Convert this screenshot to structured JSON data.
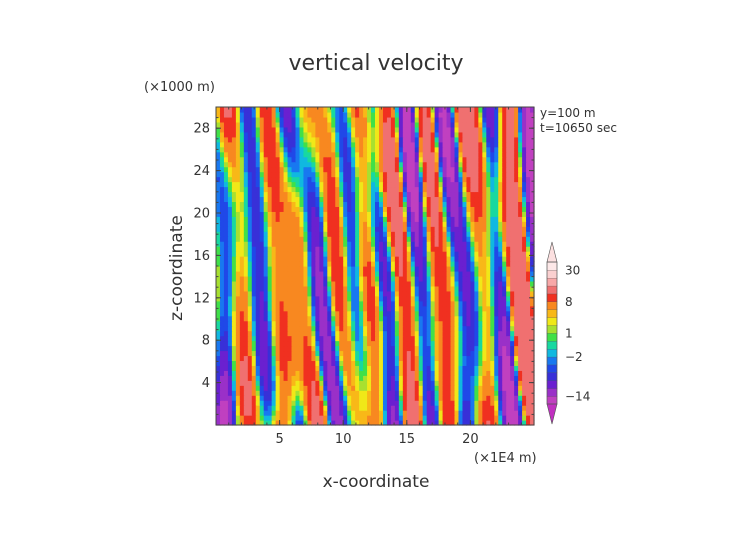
{
  "chart_data": {
    "type": "heatmap",
    "title": "vertical velocity",
    "xlabel": "x-coordinate",
    "ylabel": "z-coordinate",
    "x_unit": "(×1E4 m)",
    "y_unit": "(×1000 m)",
    "annotations": [
      "y=100 m",
      "t=10650 sec"
    ],
    "xlim": [
      0,
      25
    ],
    "ylim": [
      0,
      30
    ],
    "x_ticks": [
      5,
      10,
      15,
      20
    ],
    "y_ticks": [
      4,
      8,
      12,
      16,
      20,
      24,
      28
    ],
    "colorbar": {
      "labels": [
        "30",
        "8",
        "1",
        "−2",
        "−14"
      ],
      "label_values": [
        30,
        8,
        1,
        -2,
        -14
      ],
      "levels": [
        {
          "lo": -20,
          "hi": -14,
          "color": "#c040c0"
        },
        {
          "lo": -14,
          "hi": -10,
          "color": "#9a30c8"
        },
        {
          "lo": -10,
          "hi": -7,
          "color": "#6a20d0"
        },
        {
          "lo": -7,
          "hi": -5,
          "color": "#3830d8"
        },
        {
          "lo": -5,
          "hi": -3.5,
          "color": "#2048e8"
        },
        {
          "lo": -3.5,
          "hi": -2,
          "color": "#1878f0"
        },
        {
          "lo": -2,
          "hi": -1,
          "color": "#10b8e0"
        },
        {
          "lo": -1,
          "hi": 0,
          "color": "#18d8a0"
        },
        {
          "lo": 0,
          "hi": 1,
          "color": "#40e048"
        },
        {
          "lo": 1,
          "hi": 2,
          "color": "#a8e030"
        },
        {
          "lo": 2,
          "hi": 3.5,
          "color": "#f0e818"
        },
        {
          "lo": 3.5,
          "hi": 5,
          "color": "#f8b818"
        },
        {
          "lo": 5,
          "hi": 8,
          "color": "#f88820"
        },
        {
          "lo": 8,
          "hi": 12,
          "color": "#f03020"
        },
        {
          "lo": 12,
          "hi": 18,
          "color": "#f07070"
        },
        {
          "lo": 18,
          "hi": 24,
          "color": "#f8a8a8"
        },
        {
          "lo": 24,
          "hi": 30,
          "color": "#fad0d0"
        },
        {
          "lo": 30,
          "hi": 40,
          "color": "#fde8e8"
        }
      ],
      "under_color": "#c030c0",
      "over_color": "#fce0e0"
    }
  }
}
